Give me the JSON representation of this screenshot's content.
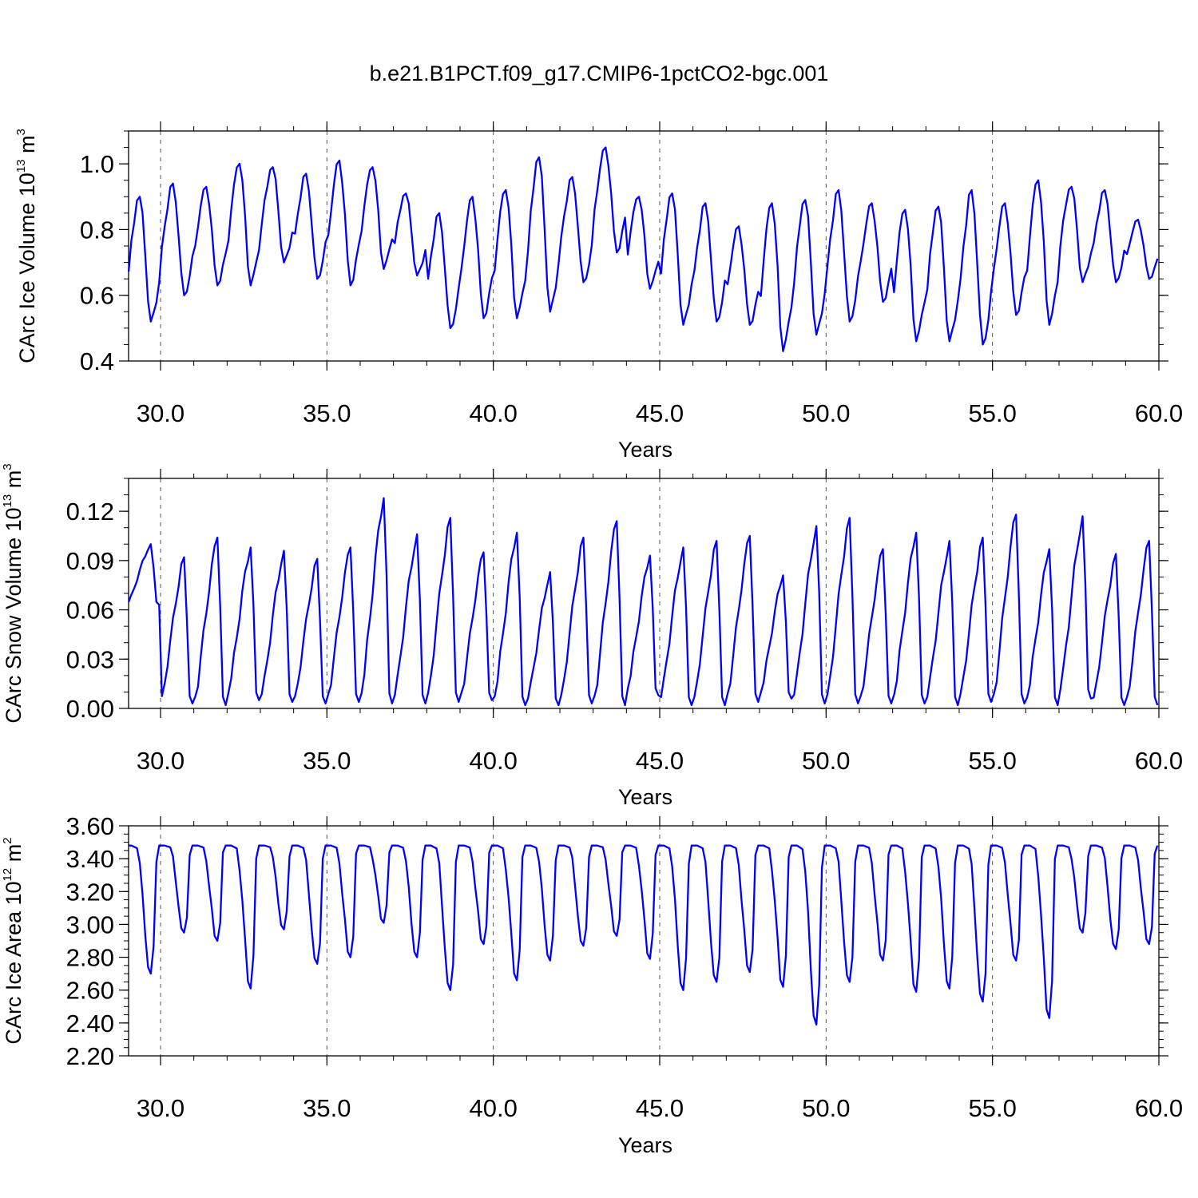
{
  "title": "b.e21.B1PCT.f09_g17.CMIP6-1pctCO2-bgc.001",
  "colors": {
    "series": "#0000ff",
    "axis": "#000000",
    "grid": "#555555",
    "background": "#ffffff"
  },
  "chart_data": [
    {
      "type": "line",
      "name": "ice-volume",
      "ylabel": {
        "text": "CArc Ice Volume 10",
        "sup1": "13",
        "unit": " m",
        "sup2": "3"
      },
      "xlabel": "Years",
      "xlim": [
        29.04,
        60.0
      ],
      "ylim": [
        0.4,
        1.1
      ],
      "yticks": [
        0.4,
        0.6,
        0.8,
        1.0
      ],
      "ytick_labels": [
        "0.4",
        "0.6",
        "0.8",
        "1.0"
      ],
      "xticks": [
        30,
        35,
        40,
        45,
        50,
        55,
        60
      ],
      "xtick_labels": [
        "30.0",
        "35.0",
        "40.0",
        "45.0",
        "50.0",
        "55.0",
        "60.0"
      ],
      "vlines": [
        30,
        35,
        40,
        45,
        50,
        55
      ],
      "x_start": 29.0417,
      "x_step": 0.083333,
      "seasonal_max": [
        0.9,
        0.94,
        0.93,
        1.0,
        0.99,
        0.97,
        1.01,
        0.99,
        0.91,
        0.85,
        0.9,
        0.92,
        1.02,
        0.96,
        1.05,
        0.9,
        0.91,
        0.88,
        0.81,
        0.88,
        0.89,
        0.92,
        0.88,
        0.86,
        0.87,
        0.92,
        0.88,
        0.95,
        0.93,
        0.92,
        0.83
      ],
      "seasonal_min": [
        0.52,
        0.6,
        0.63,
        0.63,
        0.7,
        0.65,
        0.63,
        0.68,
        0.66,
        0.5,
        0.53,
        0.53,
        0.55,
        0.64,
        0.73,
        0.62,
        0.51,
        0.52,
        0.51,
        0.43,
        0.48,
        0.52,
        0.58,
        0.46,
        0.46,
        0.45,
        0.54,
        0.51,
        0.64,
        0.64,
        0.65
      ]
    },
    {
      "type": "line",
      "name": "snow-volume",
      "ylabel": {
        "text": "CArc Snow Volume 10",
        "sup1": "13",
        "unit": " m",
        "sup2": "3"
      },
      "xlabel": "Years",
      "xlim": [
        29.04,
        60.0
      ],
      "ylim": [
        0.0,
        0.14
      ],
      "yticks": [
        0.0,
        0.03,
        0.06,
        0.09,
        0.12
      ],
      "ytick_labels": [
        "0.00",
        "0.03",
        "0.06",
        "0.09",
        "0.12"
      ],
      "xticks": [
        30,
        35,
        40,
        45,
        50,
        55,
        60
      ],
      "xtick_labels": [
        "30.0",
        "35.0",
        "40.0",
        "45.0",
        "50.0",
        "55.0",
        "60.0"
      ],
      "vlines": [
        30,
        35,
        40,
        45,
        50,
        55
      ],
      "seasonal_max": [
        0.1,
        0.092,
        0.104,
        0.098,
        0.096,
        0.091,
        0.098,
        0.128,
        0.106,
        0.116,
        0.095,
        0.107,
        0.083,
        0.104,
        0.114,
        0.093,
        0.098,
        0.102,
        0.105,
        0.081,
        0.111,
        0.116,
        0.097,
        0.107,
        0.102,
        0.104,
        0.118,
        0.097,
        0.117,
        0.094,
        0.102
      ],
      "seasonal_min": [
        0.063,
        0.003,
        0.002,
        0.005,
        0.004,
        0.003,
        0.004,
        0.003,
        0.003,
        0.004,
        0.005,
        0.002,
        0.002,
        0.003,
        0.002,
        0.008,
        0.002,
        0.002,
        0.004,
        0.006,
        0.003,
        0.003,
        0.003,
        0.003,
        0.002,
        0.004,
        0.003,
        0.002,
        0.006,
        0.002,
        0.002
      ]
    },
    {
      "type": "line",
      "name": "ice-area",
      "ylabel": {
        "text": "CArc Ice Area 10",
        "sup1": "12",
        "unit": " m",
        "sup2": "2"
      },
      "xlabel": "Years",
      "xlim": [
        29.04,
        60.0
      ],
      "ylim": [
        2.2,
        3.6
      ],
      "yticks": [
        2.2,
        2.4,
        2.6,
        2.8,
        3.0,
        3.2,
        3.4,
        3.6
      ],
      "ytick_labels": [
        "2.20",
        "2.40",
        "2.60",
        "2.80",
        "3.00",
        "3.20",
        "3.40",
        "3.60"
      ],
      "xticks": [
        30,
        35,
        40,
        45,
        50,
        55,
        60
      ],
      "xtick_labels": [
        "30.0",
        "35.0",
        "40.0",
        "45.0",
        "50.0",
        "55.0",
        "60.0"
      ],
      "vlines": [
        30,
        35,
        40,
        45,
        50,
        55
      ],
      "seasonal_max": [
        3.48,
        3.48,
        3.48,
        3.48,
        3.48,
        3.48,
        3.48,
        3.48,
        3.48,
        3.48,
        3.48,
        3.48,
        3.48,
        3.48,
        3.48,
        3.48,
        3.48,
        3.48,
        3.48,
        3.48,
        3.48,
        3.48,
        3.48,
        3.48,
        3.48,
        3.48,
        3.48,
        3.48,
        3.48,
        3.48,
        3.48
      ],
      "seasonal_min": [
        2.7,
        2.95,
        2.9,
        2.61,
        2.97,
        2.76,
        2.8,
        3.01,
        2.8,
        2.6,
        2.88,
        2.66,
        2.78,
        2.87,
        2.93,
        2.79,
        2.6,
        2.65,
        2.71,
        2.62,
        2.39,
        2.65,
        2.78,
        2.59,
        2.61,
        2.53,
        2.78,
        2.43,
        2.95,
        2.85,
        2.88
      ]
    }
  ]
}
